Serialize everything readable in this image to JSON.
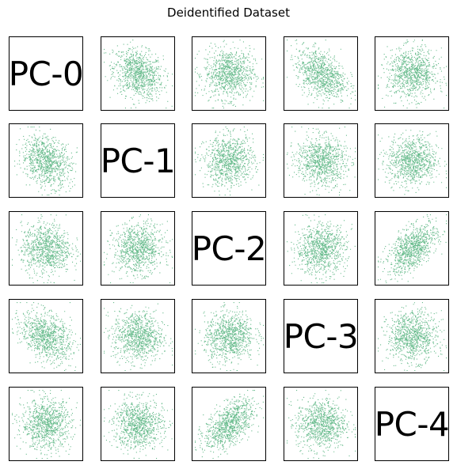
{
  "chart_data": {
    "type": "scatter",
    "title": "Deidentified Dataset",
    "grid": false,
    "legend": "none",
    "colors": {
      "point": "#4caf78"
    },
    "variables": [
      "PC-0",
      "PC-1",
      "PC-2",
      "PC-3",
      "PC-4"
    ],
    "layout": "pair-plot",
    "panels": [
      {
        "row": 0,
        "col": 1,
        "y": "PC-0",
        "x": "PC-1",
        "correlation": -0.25
      },
      {
        "row": 0,
        "col": 2,
        "y": "PC-0",
        "x": "PC-2",
        "correlation": 0.0
      },
      {
        "row": 0,
        "col": 3,
        "y": "PC-0",
        "x": "PC-3",
        "correlation": -0.35
      },
      {
        "row": 0,
        "col": 4,
        "y": "PC-0",
        "x": "PC-4",
        "correlation": 0.0
      },
      {
        "row": 1,
        "col": 0,
        "y": "PC-1",
        "x": "PC-0",
        "correlation": -0.25
      },
      {
        "row": 1,
        "col": 2,
        "y": "PC-1",
        "x": "PC-2",
        "correlation": 0.05
      },
      {
        "row": 1,
        "col": 3,
        "y": "PC-1",
        "x": "PC-3",
        "correlation": -0.05
      },
      {
        "row": 1,
        "col": 4,
        "y": "PC-1",
        "x": "PC-4",
        "correlation": 0.0
      },
      {
        "row": 2,
        "col": 0,
        "y": "PC-2",
        "x": "PC-0",
        "correlation": 0.0
      },
      {
        "row": 2,
        "col": 1,
        "y": "PC-2",
        "x": "PC-1",
        "correlation": 0.05
      },
      {
        "row": 2,
        "col": 3,
        "y": "PC-2",
        "x": "PC-3",
        "correlation": 0.1
      },
      {
        "row": 2,
        "col": 4,
        "y": "PC-2",
        "x": "PC-4",
        "correlation": 0.55
      },
      {
        "row": 3,
        "col": 0,
        "y": "PC-3",
        "x": "PC-0",
        "correlation": -0.35
      },
      {
        "row": 3,
        "col": 1,
        "y": "PC-3",
        "x": "PC-1",
        "correlation": -0.05
      },
      {
        "row": 3,
        "col": 2,
        "y": "PC-3",
        "x": "PC-2",
        "correlation": 0.1
      },
      {
        "row": 3,
        "col": 4,
        "y": "PC-3",
        "x": "PC-4",
        "correlation": 0.0
      },
      {
        "row": 4,
        "col": 0,
        "y": "PC-4",
        "x": "PC-0",
        "correlation": 0.0
      },
      {
        "row": 4,
        "col": 1,
        "y": "PC-4",
        "x": "PC-1",
        "correlation": 0.0
      },
      {
        "row": 4,
        "col": 2,
        "y": "PC-4",
        "x": "PC-2",
        "correlation": 0.55
      },
      {
        "row": 4,
        "col": 3,
        "y": "PC-4",
        "x": "PC-3",
        "correlation": 0.0
      }
    ]
  }
}
